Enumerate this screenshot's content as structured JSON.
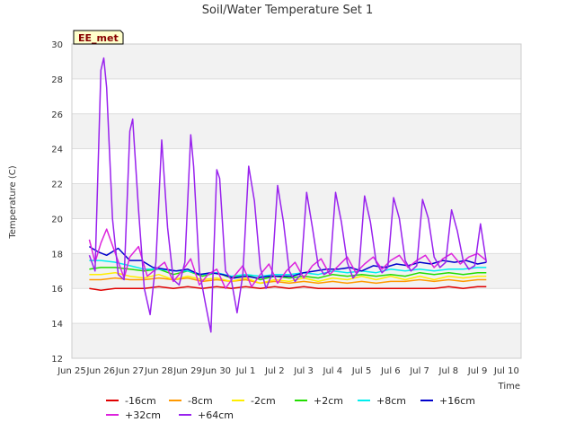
{
  "chart_data": {
    "type": "line",
    "title": "Soil/Water Temperature Set 1",
    "xlabel": "Time",
    "ylabel": "Temperature (C)",
    "station_badge": "EE_met",
    "ylim": [
      12,
      30
    ],
    "xlim": [
      0,
      15.5
    ],
    "yticks": [
      12,
      14,
      16,
      18,
      20,
      22,
      24,
      26,
      28,
      30
    ],
    "xticks": [
      {
        "pos": 0,
        "label": "Jun 25"
      },
      {
        "pos": 1,
        "label": "Jun 26"
      },
      {
        "pos": 2,
        "label": "Jun 27"
      },
      {
        "pos": 3,
        "label": "Jun 28"
      },
      {
        "pos": 4,
        "label": "Jun 29"
      },
      {
        "pos": 5,
        "label": "Jun 30"
      },
      {
        "pos": 6,
        "label": "Jul 1"
      },
      {
        "pos": 7,
        "label": "Jul 2"
      },
      {
        "pos": 8,
        "label": "Jul 3"
      },
      {
        "pos": 9,
        "label": "Jul 4"
      },
      {
        "pos": 10,
        "label": "Jul 5"
      },
      {
        "pos": 11,
        "label": "Jul 6"
      },
      {
        "pos": 12,
        "label": "Jul 7"
      },
      {
        "pos": 13,
        "label": "Jul 8"
      },
      {
        "pos": 14,
        "label": "Jul 9"
      },
      {
        "pos": 15,
        "label": "Jul 10"
      }
    ],
    "grid": true,
    "legend_position": "bottom",
    "series": [
      {
        "name": "-16cm",
        "color": "#e00000",
        "x": [
          0.6,
          1.0,
          1.5,
          2.0,
          2.5,
          3.0,
          3.5,
          4.0,
          4.5,
          5.0,
          5.5,
          6.0,
          6.5,
          7.0,
          7.5,
          8.0,
          8.5,
          9.0,
          9.5,
          10.0,
          10.5,
          11.0,
          11.5,
          12.0,
          12.5,
          13.0,
          13.5,
          14.0,
          14.3
        ],
        "y": [
          16.0,
          15.9,
          16.0,
          16.0,
          16.0,
          16.1,
          16.0,
          16.1,
          16.0,
          16.1,
          16.0,
          16.1,
          16.0,
          16.1,
          16.0,
          16.1,
          16.0,
          16.0,
          16.0,
          16.0,
          16.0,
          16.0,
          16.0,
          16.0,
          16.0,
          16.1,
          16.0,
          16.1,
          16.1
        ]
      },
      {
        "name": "-8cm",
        "color": "#ff9900",
        "x": [
          0.6,
          1.0,
          1.5,
          2.0,
          2.5,
          3.0,
          3.5,
          4.0,
          4.5,
          5.0,
          5.5,
          6.0,
          6.5,
          7.0,
          7.5,
          8.0,
          8.5,
          9.0,
          9.5,
          10.0,
          10.5,
          11.0,
          11.5,
          12.0,
          12.5,
          13.0,
          13.5,
          14.0,
          14.3
        ],
        "y": [
          16.5,
          16.5,
          16.6,
          16.5,
          16.5,
          16.6,
          16.5,
          16.6,
          16.4,
          16.5,
          16.4,
          16.5,
          16.3,
          16.4,
          16.3,
          16.4,
          16.3,
          16.4,
          16.3,
          16.4,
          16.3,
          16.4,
          16.4,
          16.5,
          16.4,
          16.5,
          16.4,
          16.5,
          16.5
        ]
      },
      {
        "name": "-2cm",
        "color": "#ffee00",
        "x": [
          0.6,
          1.0,
          1.5,
          2.0,
          2.5,
          3.0,
          3.5,
          4.0,
          4.5,
          5.0,
          5.5,
          6.0,
          6.5,
          7.0,
          7.5,
          8.0,
          8.5,
          9.0,
          9.5,
          10.0,
          10.5,
          11.0,
          11.5,
          12.0,
          12.5,
          13.0,
          13.5,
          14.0,
          14.3
        ],
        "y": [
          16.8,
          16.8,
          16.9,
          16.7,
          16.6,
          16.8,
          16.5,
          16.7,
          16.5,
          16.6,
          16.4,
          16.6,
          16.3,
          16.5,
          16.4,
          16.6,
          16.4,
          16.6,
          16.5,
          16.7,
          16.5,
          16.7,
          16.5,
          16.7,
          16.5,
          16.7,
          16.6,
          16.7,
          16.7
        ]
      },
      {
        "name": "+2cm",
        "color": "#22dd00",
        "x": [
          0.6,
          1.0,
          1.5,
          2.0,
          2.5,
          3.0,
          3.5,
          4.0,
          4.5,
          5.0,
          5.5,
          6.0,
          6.5,
          7.0,
          7.5,
          8.0,
          8.5,
          9.0,
          9.5,
          10.0,
          10.5,
          11.0,
          11.5,
          12.0,
          12.5,
          13.0,
          13.5,
          14.0,
          14.3
        ],
        "y": [
          17.1,
          17.2,
          17.2,
          17.1,
          17.0,
          17.1,
          16.8,
          17.0,
          16.7,
          16.9,
          16.6,
          16.8,
          16.5,
          16.7,
          16.6,
          16.7,
          16.6,
          16.8,
          16.7,
          16.8,
          16.7,
          16.8,
          16.7,
          16.9,
          16.8,
          16.9,
          16.8,
          16.9,
          16.9
        ]
      },
      {
        "name": "+8cm",
        "color": "#00eeee",
        "x": [
          0.6,
          1.0,
          1.5,
          2.0,
          2.5,
          3.0,
          3.5,
          4.0,
          4.5,
          5.0,
          5.5,
          6.0,
          6.5,
          7.0,
          7.5,
          8.0,
          8.5,
          9.0,
          9.5,
          10.0,
          10.5,
          11.0,
          11.5,
          12.0,
          12.5,
          13.0,
          13.5,
          14.0,
          14.3
        ],
        "y": [
          17.6,
          17.6,
          17.5,
          17.3,
          17.1,
          17.1,
          17.0,
          17.0,
          16.8,
          16.9,
          16.7,
          16.8,
          16.7,
          16.8,
          16.8,
          16.9,
          16.8,
          17.0,
          16.9,
          17.0,
          16.9,
          17.1,
          17.0,
          17.1,
          17.0,
          17.1,
          17.1,
          17.2,
          17.2
        ]
      },
      {
        "name": "+16cm",
        "color": "#0000cc",
        "x": [
          0.6,
          0.9,
          1.2,
          1.6,
          2.0,
          2.4,
          2.8,
          3.2,
          3.6,
          4.0,
          4.4,
          4.8,
          5.2,
          5.6,
          6.0,
          6.4,
          6.8,
          7.2,
          7.6,
          8.0,
          8.4,
          8.8,
          9.2,
          9.6,
          10.0,
          10.4,
          10.8,
          11.2,
          11.6,
          12.0,
          12.4,
          12.8,
          13.2,
          13.6,
          14.0,
          14.3
        ],
        "y": [
          18.4,
          18.1,
          17.9,
          18.3,
          17.6,
          17.6,
          17.2,
          17.1,
          17.0,
          17.1,
          16.8,
          16.9,
          16.8,
          16.6,
          16.7,
          16.6,
          16.7,
          16.7,
          16.7,
          16.9,
          17.0,
          17.1,
          17.1,
          17.2,
          17.0,
          17.3,
          17.2,
          17.4,
          17.3,
          17.5,
          17.4,
          17.6,
          17.5,
          17.6,
          17.4,
          17.5
        ]
      },
      {
        "name": "+32cm",
        "color": "#dd22dd",
        "x": [
          0.6,
          0.8,
          1.0,
          1.2,
          1.5,
          1.8,
          2.0,
          2.3,
          2.6,
          2.9,
          3.2,
          3.5,
          3.8,
          4.1,
          4.4,
          4.7,
          5.0,
          5.3,
          5.6,
          5.9,
          6.2,
          6.5,
          6.8,
          7.1,
          7.4,
          7.7,
          8.0,
          8.3,
          8.6,
          8.9,
          9.2,
          9.5,
          9.8,
          10.1,
          10.4,
          10.7,
          11.0,
          11.3,
          11.6,
          11.9,
          12.2,
          12.5,
          12.8,
          13.1,
          13.4,
          13.7,
          14.0,
          14.3
        ],
        "y": [
          18.8,
          17.5,
          18.6,
          19.4,
          18.0,
          16.6,
          17.8,
          18.4,
          16.7,
          17.1,
          17.5,
          16.4,
          17.0,
          17.7,
          16.2,
          16.8,
          17.1,
          16.0,
          16.7,
          17.3,
          16.1,
          16.8,
          17.4,
          16.3,
          17.0,
          17.5,
          16.6,
          17.3,
          17.7,
          16.8,
          17.3,
          17.8,
          16.9,
          17.4,
          17.8,
          17.1,
          17.6,
          17.9,
          17.2,
          17.6,
          17.9,
          17.2,
          17.7,
          18.0,
          17.4,
          17.8,
          18.0,
          17.6
        ]
      },
      {
        "name": "+64cm",
        "color": "#9922ee",
        "x": [
          0.6,
          0.8,
          1.0,
          1.1,
          1.2,
          1.4,
          1.6,
          1.8,
          2.0,
          2.1,
          2.3,
          2.5,
          2.7,
          2.9,
          3.1,
          3.3,
          3.5,
          3.7,
          3.9,
          4.1,
          4.2,
          4.4,
          4.6,
          4.8,
          5.0,
          5.1,
          5.3,
          5.5,
          5.7,
          5.9,
          6.1,
          6.3,
          6.5,
          6.7,
          6.9,
          7.1,
          7.3,
          7.5,
          7.7,
          7.9,
          8.1,
          8.3,
          8.5,
          8.7,
          8.9,
          9.1,
          9.3,
          9.5,
          9.7,
          9.9,
          10.1,
          10.3,
          10.5,
          10.7,
          10.9,
          11.1,
          11.3,
          11.5,
          11.7,
          11.9,
          12.1,
          12.3,
          12.5,
          12.7,
          12.9,
          13.1,
          13.3,
          13.5,
          13.7,
          13.9,
          14.1,
          14.3
        ],
        "y": [
          17.9,
          17.0,
          28.5,
          29.2,
          27.5,
          20.0,
          16.8,
          16.5,
          25.0,
          25.7,
          20.5,
          16.0,
          14.5,
          17.5,
          24.5,
          19.5,
          16.5,
          16.2,
          17.5,
          24.8,
          23.0,
          17.0,
          15.2,
          13.5,
          22.8,
          22.3,
          17.0,
          16.5,
          14.6,
          16.8,
          23.0,
          21.0,
          17.2,
          16.0,
          16.8,
          21.9,
          19.8,
          17.0,
          16.4,
          16.8,
          21.5,
          19.5,
          17.3,
          16.8,
          17.0,
          21.5,
          19.8,
          17.5,
          16.6,
          17.0,
          21.3,
          19.8,
          17.5,
          16.9,
          17.2,
          21.2,
          20.0,
          17.6,
          17.0,
          17.3,
          21.1,
          20.0,
          17.8,
          17.2,
          17.5,
          20.5,
          19.3,
          17.6,
          17.1,
          17.3,
          19.7,
          17.5
        ]
      }
    ]
  }
}
